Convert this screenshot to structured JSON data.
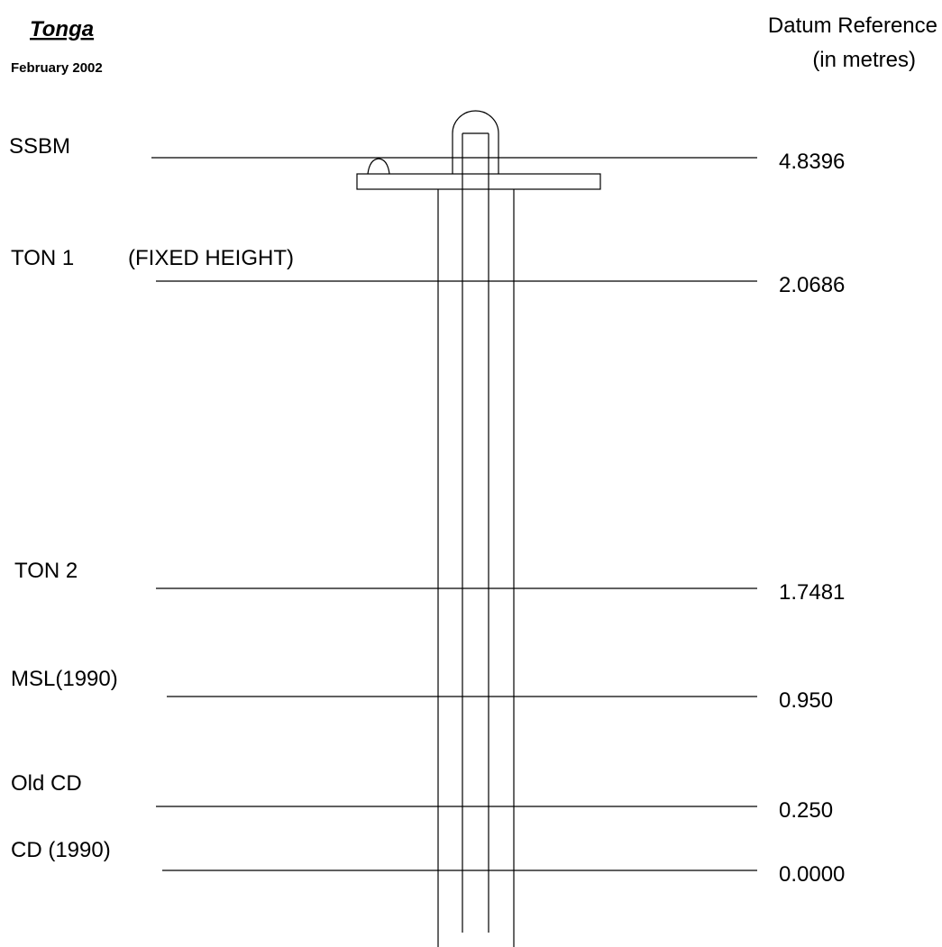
{
  "header": {
    "title": "Tonga",
    "subtitle": "February 2002",
    "column_title": [
      "Datum Reference",
      "(in metres)"
    ]
  },
  "levels": [
    {
      "label": "SSBM",
      "value": "4.8396"
    },
    {
      "label": "TON 1",
      "note": "(FIXED HEIGHT)",
      "value": "2.0686"
    },
    {
      "label": "TON 2",
      "value": "1.7481"
    },
    {
      "label": "MSL(1990)",
      "value": "0.950"
    },
    {
      "label": "Old CD",
      "value": "0.250"
    },
    {
      "label": "CD (1990)",
      "value": "0.0000"
    }
  ]
}
